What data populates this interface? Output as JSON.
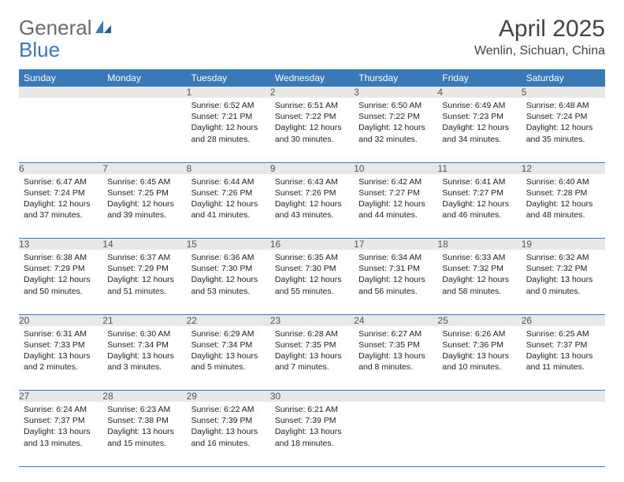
{
  "logo": {
    "part1": "General",
    "part2": "Blue"
  },
  "title": "April 2025",
  "location": "Wenlin, Sichuan, China",
  "colors": {
    "header_bg": "#3a79b7",
    "header_text": "#ffffff",
    "daynum_bg": "#e8e8e8",
    "daynum_text": "#555555",
    "body_text": "#222222",
    "rule": "#3a79b7"
  },
  "weekdays": [
    "Sunday",
    "Monday",
    "Tuesday",
    "Wednesday",
    "Thursday",
    "Friday",
    "Saturday"
  ],
  "weeks": [
    [
      null,
      null,
      {
        "n": "1",
        "sr": "6:52 AM",
        "ss": "7:21 PM",
        "d1": "12 hours",
        "d2": "and 28 minutes."
      },
      {
        "n": "2",
        "sr": "6:51 AM",
        "ss": "7:22 PM",
        "d1": "12 hours",
        "d2": "and 30 minutes."
      },
      {
        "n": "3",
        "sr": "6:50 AM",
        "ss": "7:22 PM",
        "d1": "12 hours",
        "d2": "and 32 minutes."
      },
      {
        "n": "4",
        "sr": "6:49 AM",
        "ss": "7:23 PM",
        "d1": "12 hours",
        "d2": "and 34 minutes."
      },
      {
        "n": "5",
        "sr": "6:48 AM",
        "ss": "7:24 PM",
        "d1": "12 hours",
        "d2": "and 35 minutes."
      }
    ],
    [
      {
        "n": "6",
        "sr": "6:47 AM",
        "ss": "7:24 PM",
        "d1": "12 hours",
        "d2": "and 37 minutes."
      },
      {
        "n": "7",
        "sr": "6:45 AM",
        "ss": "7:25 PM",
        "d1": "12 hours",
        "d2": "and 39 minutes."
      },
      {
        "n": "8",
        "sr": "6:44 AM",
        "ss": "7:26 PM",
        "d1": "12 hours",
        "d2": "and 41 minutes."
      },
      {
        "n": "9",
        "sr": "6:43 AM",
        "ss": "7:26 PM",
        "d1": "12 hours",
        "d2": "and 43 minutes."
      },
      {
        "n": "10",
        "sr": "6:42 AM",
        "ss": "7:27 PM",
        "d1": "12 hours",
        "d2": "and 44 minutes."
      },
      {
        "n": "11",
        "sr": "6:41 AM",
        "ss": "7:27 PM",
        "d1": "12 hours",
        "d2": "and 46 minutes."
      },
      {
        "n": "12",
        "sr": "6:40 AM",
        "ss": "7:28 PM",
        "d1": "12 hours",
        "d2": "and 48 minutes."
      }
    ],
    [
      {
        "n": "13",
        "sr": "6:38 AM",
        "ss": "7:29 PM",
        "d1": "12 hours",
        "d2": "and 50 minutes."
      },
      {
        "n": "14",
        "sr": "6:37 AM",
        "ss": "7:29 PM",
        "d1": "12 hours",
        "d2": "and 51 minutes."
      },
      {
        "n": "15",
        "sr": "6:36 AM",
        "ss": "7:30 PM",
        "d1": "12 hours",
        "d2": "and 53 minutes."
      },
      {
        "n": "16",
        "sr": "6:35 AM",
        "ss": "7:30 PM",
        "d1": "12 hours",
        "d2": "and 55 minutes."
      },
      {
        "n": "17",
        "sr": "6:34 AM",
        "ss": "7:31 PM",
        "d1": "12 hours",
        "d2": "and 56 minutes."
      },
      {
        "n": "18",
        "sr": "6:33 AM",
        "ss": "7:32 PM",
        "d1": "12 hours",
        "d2": "and 58 minutes."
      },
      {
        "n": "19",
        "sr": "6:32 AM",
        "ss": "7:32 PM",
        "d1": "13 hours",
        "d2": "and 0 minutes."
      }
    ],
    [
      {
        "n": "20",
        "sr": "6:31 AM",
        "ss": "7:33 PM",
        "d1": "13 hours",
        "d2": "and 2 minutes."
      },
      {
        "n": "21",
        "sr": "6:30 AM",
        "ss": "7:34 PM",
        "d1": "13 hours",
        "d2": "and 3 minutes."
      },
      {
        "n": "22",
        "sr": "6:29 AM",
        "ss": "7:34 PM",
        "d1": "13 hours",
        "d2": "and 5 minutes."
      },
      {
        "n": "23",
        "sr": "6:28 AM",
        "ss": "7:35 PM",
        "d1": "13 hours",
        "d2": "and 7 minutes."
      },
      {
        "n": "24",
        "sr": "6:27 AM",
        "ss": "7:35 PM",
        "d1": "13 hours",
        "d2": "and 8 minutes."
      },
      {
        "n": "25",
        "sr": "6:26 AM",
        "ss": "7:36 PM",
        "d1": "13 hours",
        "d2": "and 10 minutes."
      },
      {
        "n": "26",
        "sr": "6:25 AM",
        "ss": "7:37 PM",
        "d1": "13 hours",
        "d2": "and 11 minutes."
      }
    ],
    [
      {
        "n": "27",
        "sr": "6:24 AM",
        "ss": "7:37 PM",
        "d1": "13 hours",
        "d2": "and 13 minutes."
      },
      {
        "n": "28",
        "sr": "6:23 AM",
        "ss": "7:38 PM",
        "d1": "13 hours",
        "d2": "and 15 minutes."
      },
      {
        "n": "29",
        "sr": "6:22 AM",
        "ss": "7:39 PM",
        "d1": "13 hours",
        "d2": "and 16 minutes."
      },
      {
        "n": "30",
        "sr": "6:21 AM",
        "ss": "7:39 PM",
        "d1": "13 hours",
        "d2": "and 18 minutes."
      },
      null,
      null,
      null
    ]
  ],
  "labels": {
    "sunrise": "Sunrise: ",
    "sunset": "Sunset: ",
    "daylight": "Daylight: "
  }
}
